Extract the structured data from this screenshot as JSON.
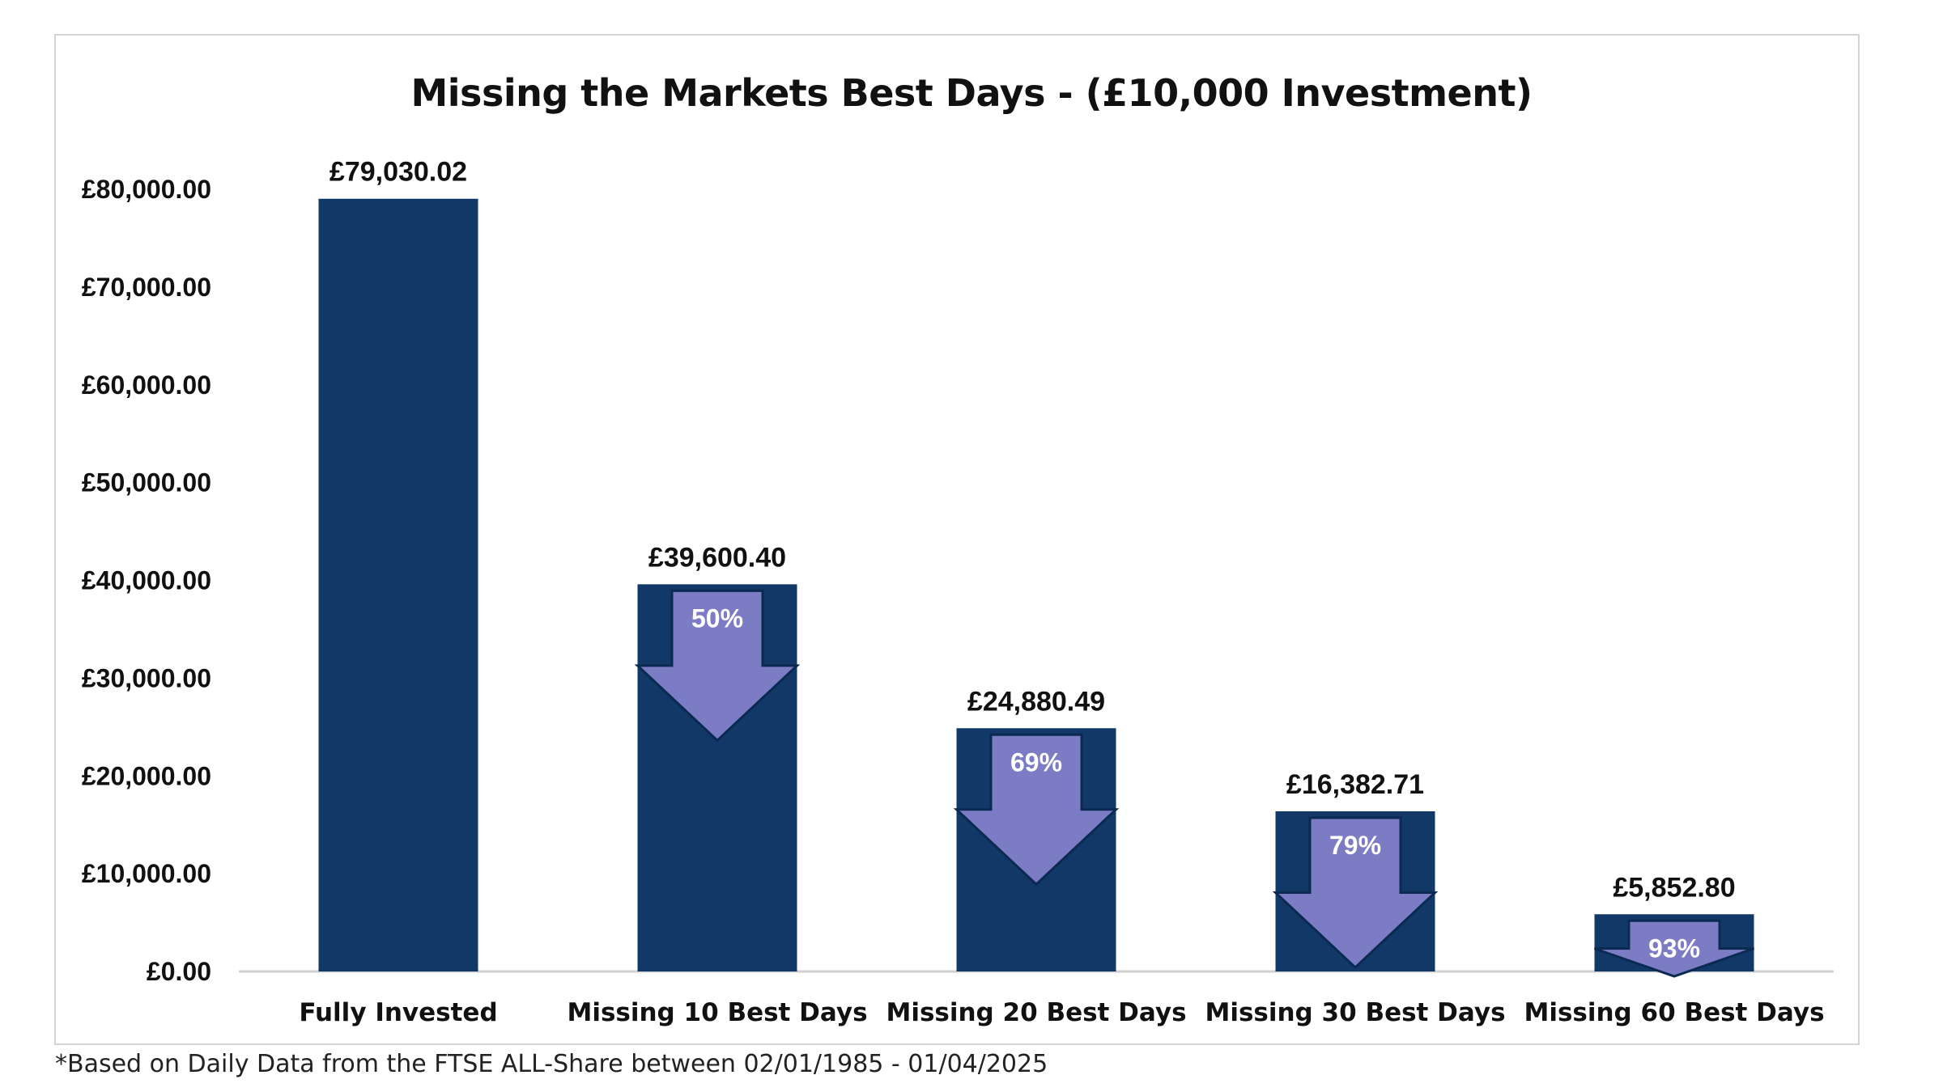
{
  "chart_data": {
    "type": "bar",
    "title": "Missing the Markets Best Days - (£10,000 Investment)",
    "categories": [
      "Fully Invested",
      "Missing 10 Best Days",
      "Missing 20 Best Days",
      "Missing 30 Best Days",
      "Missing 60 Best Days"
    ],
    "values": [
      79030.02,
      39600.4,
      24880.49,
      16382.71,
      5852.8
    ],
    "data_labels": [
      "£79,030.02",
      "£39,600.40",
      "£24,880.49",
      "£16,382.71",
      "£5,852.80"
    ],
    "reduction_labels": [
      "",
      "50%",
      "69%",
      "79%",
      "93%"
    ],
    "ylim": [
      0,
      80000
    ],
    "y_ticks": [
      0,
      10000,
      20000,
      30000,
      40000,
      50000,
      60000,
      70000,
      80000
    ],
    "y_tick_labels": [
      "£0.00",
      "£10,000.00",
      "£20,000.00",
      "£30,000.00",
      "£40,000.00",
      "£50,000.00",
      "£60,000.00",
      "£70,000.00",
      "£80,000.00"
    ],
    "xlabel": "",
    "ylabel": "",
    "grid": false,
    "legend": "none",
    "colors": {
      "bar": "#123868",
      "arrow": "#7b7cc4",
      "axis": "#d0d0d0"
    }
  },
  "footnote": "*Based on Daily Data from the FTSE ALL-Share between 02/01/1985 - 01/04/2025"
}
